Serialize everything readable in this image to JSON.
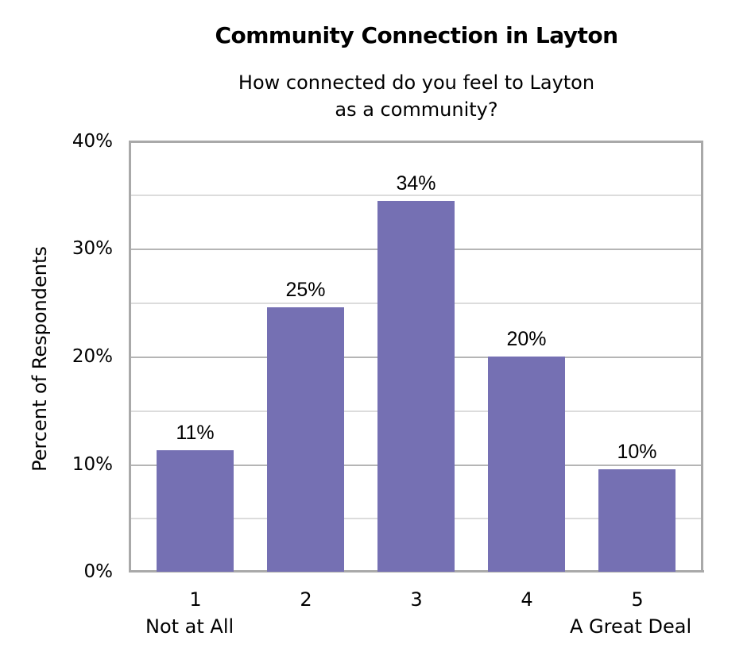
{
  "chart_data": {
    "type": "bar",
    "title": "Community Connection in Layton",
    "subtitle": "How connected do you feel to Layton as a community?",
    "subtitle_lines": [
      "How connected do you feel to Layton",
      "as a community?"
    ],
    "xlabel": "",
    "ylabel": "Percent of Respondents",
    "categories": [
      "1",
      "2",
      "3",
      "4",
      "5"
    ],
    "category_sublabels": {
      "1": "Not at All",
      "5": "A Great Deal"
    },
    "values": [
      11,
      25,
      34,
      20,
      10
    ],
    "bar_heights_estimated": [
      11.3,
      24.5,
      34.4,
      20.0,
      9.5
    ],
    "data_labels": [
      "11%",
      "25%",
      "34%",
      "20%",
      "10%"
    ],
    "ylim": [
      0,
      40
    ],
    "yticks": [
      "0%",
      "10%",
      "20%",
      "30%",
      "40%"
    ],
    "grid": {
      "major_step": 10,
      "minor_step": 5,
      "axis": "y"
    },
    "legend": null,
    "colors": {
      "bar": "#7570b3",
      "frame": "#a9a9a9",
      "grid_major": "#b5b5b5",
      "grid_minor": "#dcdcdc"
    }
  }
}
